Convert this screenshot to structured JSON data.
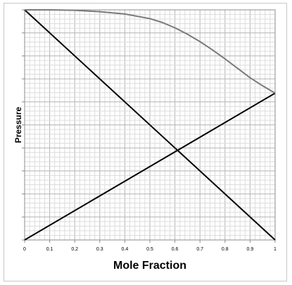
{
  "chart_data": {
    "type": "line",
    "xlabel": "Mole Fraction",
    "ylabel": "Pressure",
    "xlim": [
      0,
      1
    ],
    "ylim": [
      0,
      1
    ],
    "x_ticks": [
      "0",
      "0.1",
      "0.2",
      "0.3",
      "0.4",
      "0.5",
      "0.6",
      "0.7",
      "0.8",
      "0.9",
      "1"
    ],
    "y_ticks_labeled": false,
    "grid": "fine (minor every 0.02 on x)",
    "legend": "none",
    "series": [
      {
        "color": "#000000",
        "x": [
          0,
          1
        ],
        "y": [
          1.0,
          0.0
        ]
      },
      {
        "color": "#000000",
        "x": [
          0,
          1
        ],
        "y": [
          0.0,
          0.638
        ]
      },
      {
        "color": "#7a7a7a",
        "x": [
          0,
          0.1,
          0.2,
          0.3,
          0.4,
          0.5,
          0.55,
          0.6,
          0.65,
          0.7,
          0.75,
          0.8,
          0.85,
          0.9,
          0.95,
          1.0
        ],
        "y": [
          1.0,
          1.0,
          0.998,
          0.992,
          0.982,
          0.962,
          0.945,
          0.922,
          0.894,
          0.862,
          0.826,
          0.787,
          0.746,
          0.705,
          0.67,
          0.638
        ]
      }
    ]
  }
}
